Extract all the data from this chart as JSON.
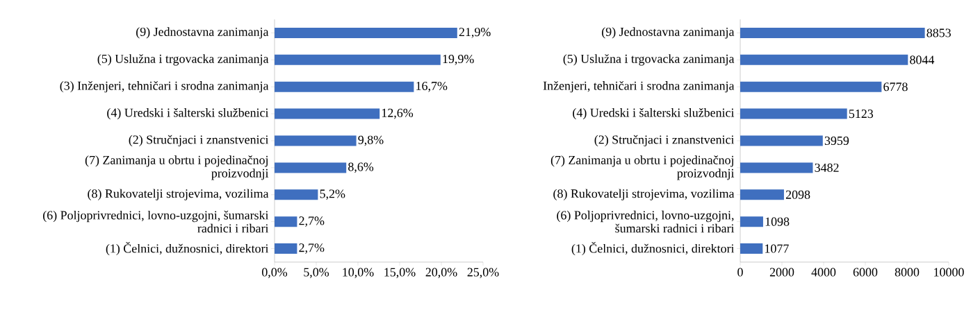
{
  "chart_data": [
    {
      "type": "bar",
      "orientation": "horizontal",
      "color": "#3f6fbf",
      "categories": [
        "(9) Jednostavna zanimanja",
        "(5) Uslužna i trgovacka zanimanja",
        "(3) Inženjeri, tehničari i srodna zanimanja",
        "(4) Uredski i šalterski službenici",
        "(2) Stručnjaci i znanstvenici",
        "(7) Zanimanja u obrtu i pojedinačnoj proizvodnji",
        "(8) Rukovatelji strojevima, vozilima",
        "(6) Poljoprivrednici, lovno-uzgojni, šumarski radnici i ribari",
        "(1) Čelnici, dužnosnici, direktori"
      ],
      "values": [
        21.9,
        19.9,
        16.7,
        12.6,
        9.8,
        8.6,
        5.2,
        2.7,
        2.7
      ],
      "value_labels": [
        "21,9%",
        "19,9%",
        "16,7%",
        "12,6%",
        "9,8%",
        "8,6%",
        "5,2%",
        "2,7%",
        "2,7%"
      ],
      "xlim": [
        0,
        25
      ],
      "xticks": [
        {
          "value": 0,
          "label": "0,0%"
        },
        {
          "value": 5,
          "label": "5,0%"
        },
        {
          "value": 10,
          "label": "10,0%"
        },
        {
          "value": 15,
          "label": "15,0%"
        },
        {
          "value": 20,
          "label": "20,0%"
        },
        {
          "value": 25,
          "label": "25,0%"
        }
      ],
      "grid": false
    },
    {
      "type": "bar",
      "orientation": "horizontal",
      "color": "#3f6fbf",
      "categories": [
        "(9) Jednostavna zanimanja",
        "(5) Uslužna i trgovacka zanimanja",
        "Inženjeri, tehničari i srodna zanimanja",
        "(4) Uredski i šalterski službenici",
        "(2) Stručnjaci i znanstvenici",
        "(7) Zanimanja u obrtu i pojedinačnoj proizvodnji",
        "(8) Rukovatelji strojevima, vozilima",
        "(6) Poljoprivrednici, lovno-uzgojni, šumarski radnici i ribari",
        "(1) Čelnici, dužnosnici, direktori"
      ],
      "values": [
        8853,
        8044,
        6778,
        5123,
        3959,
        3482,
        2098,
        1098,
        1077
      ],
      "data_labels": true,
      "xlim": [
        0,
        10000
      ],
      "xticks": [
        0,
        2000,
        4000,
        6000,
        8000,
        10000
      ],
      "grid": false
    }
  ]
}
